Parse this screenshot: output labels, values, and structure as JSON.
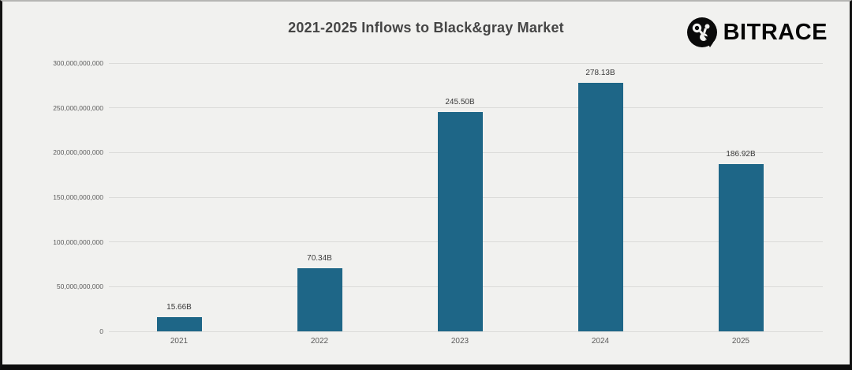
{
  "title": "2021-2025 Inflows to Black&gray Market",
  "brand": {
    "name": "BITRACE",
    "icon": "bitrace-logo-icon"
  },
  "colors": {
    "bar": "#1e6687",
    "background": "#f1f1ef",
    "grid": "#dbdbd9",
    "title_text": "#454545",
    "axis_text": "#5a5a5a",
    "frame": "#0d0d0d"
  },
  "chart_data": {
    "type": "bar",
    "title": "2021-2025 Inflows to Black&gray Market",
    "categories": [
      "2021",
      "2022",
      "2023",
      "2024",
      "2025"
    ],
    "values": [
      15660000000,
      70340000000,
      245500000000,
      278130000000,
      186920000000
    ],
    "bar_labels": [
      "15.66B",
      "70.34B",
      "245.50B",
      "278.13B",
      "186.92B"
    ],
    "xlabel": "",
    "ylabel": "",
    "ylim": [
      0,
      300000000000
    ],
    "ytick_step": 50000000000,
    "ytick_labels": [
      "0",
      "50,000,000,000",
      "100,000,000,000",
      "150,000,000,000",
      "200,000,000,000",
      "250,000,000,000",
      "300,000,000,000"
    ],
    "grid": true,
    "legend": false
  }
}
